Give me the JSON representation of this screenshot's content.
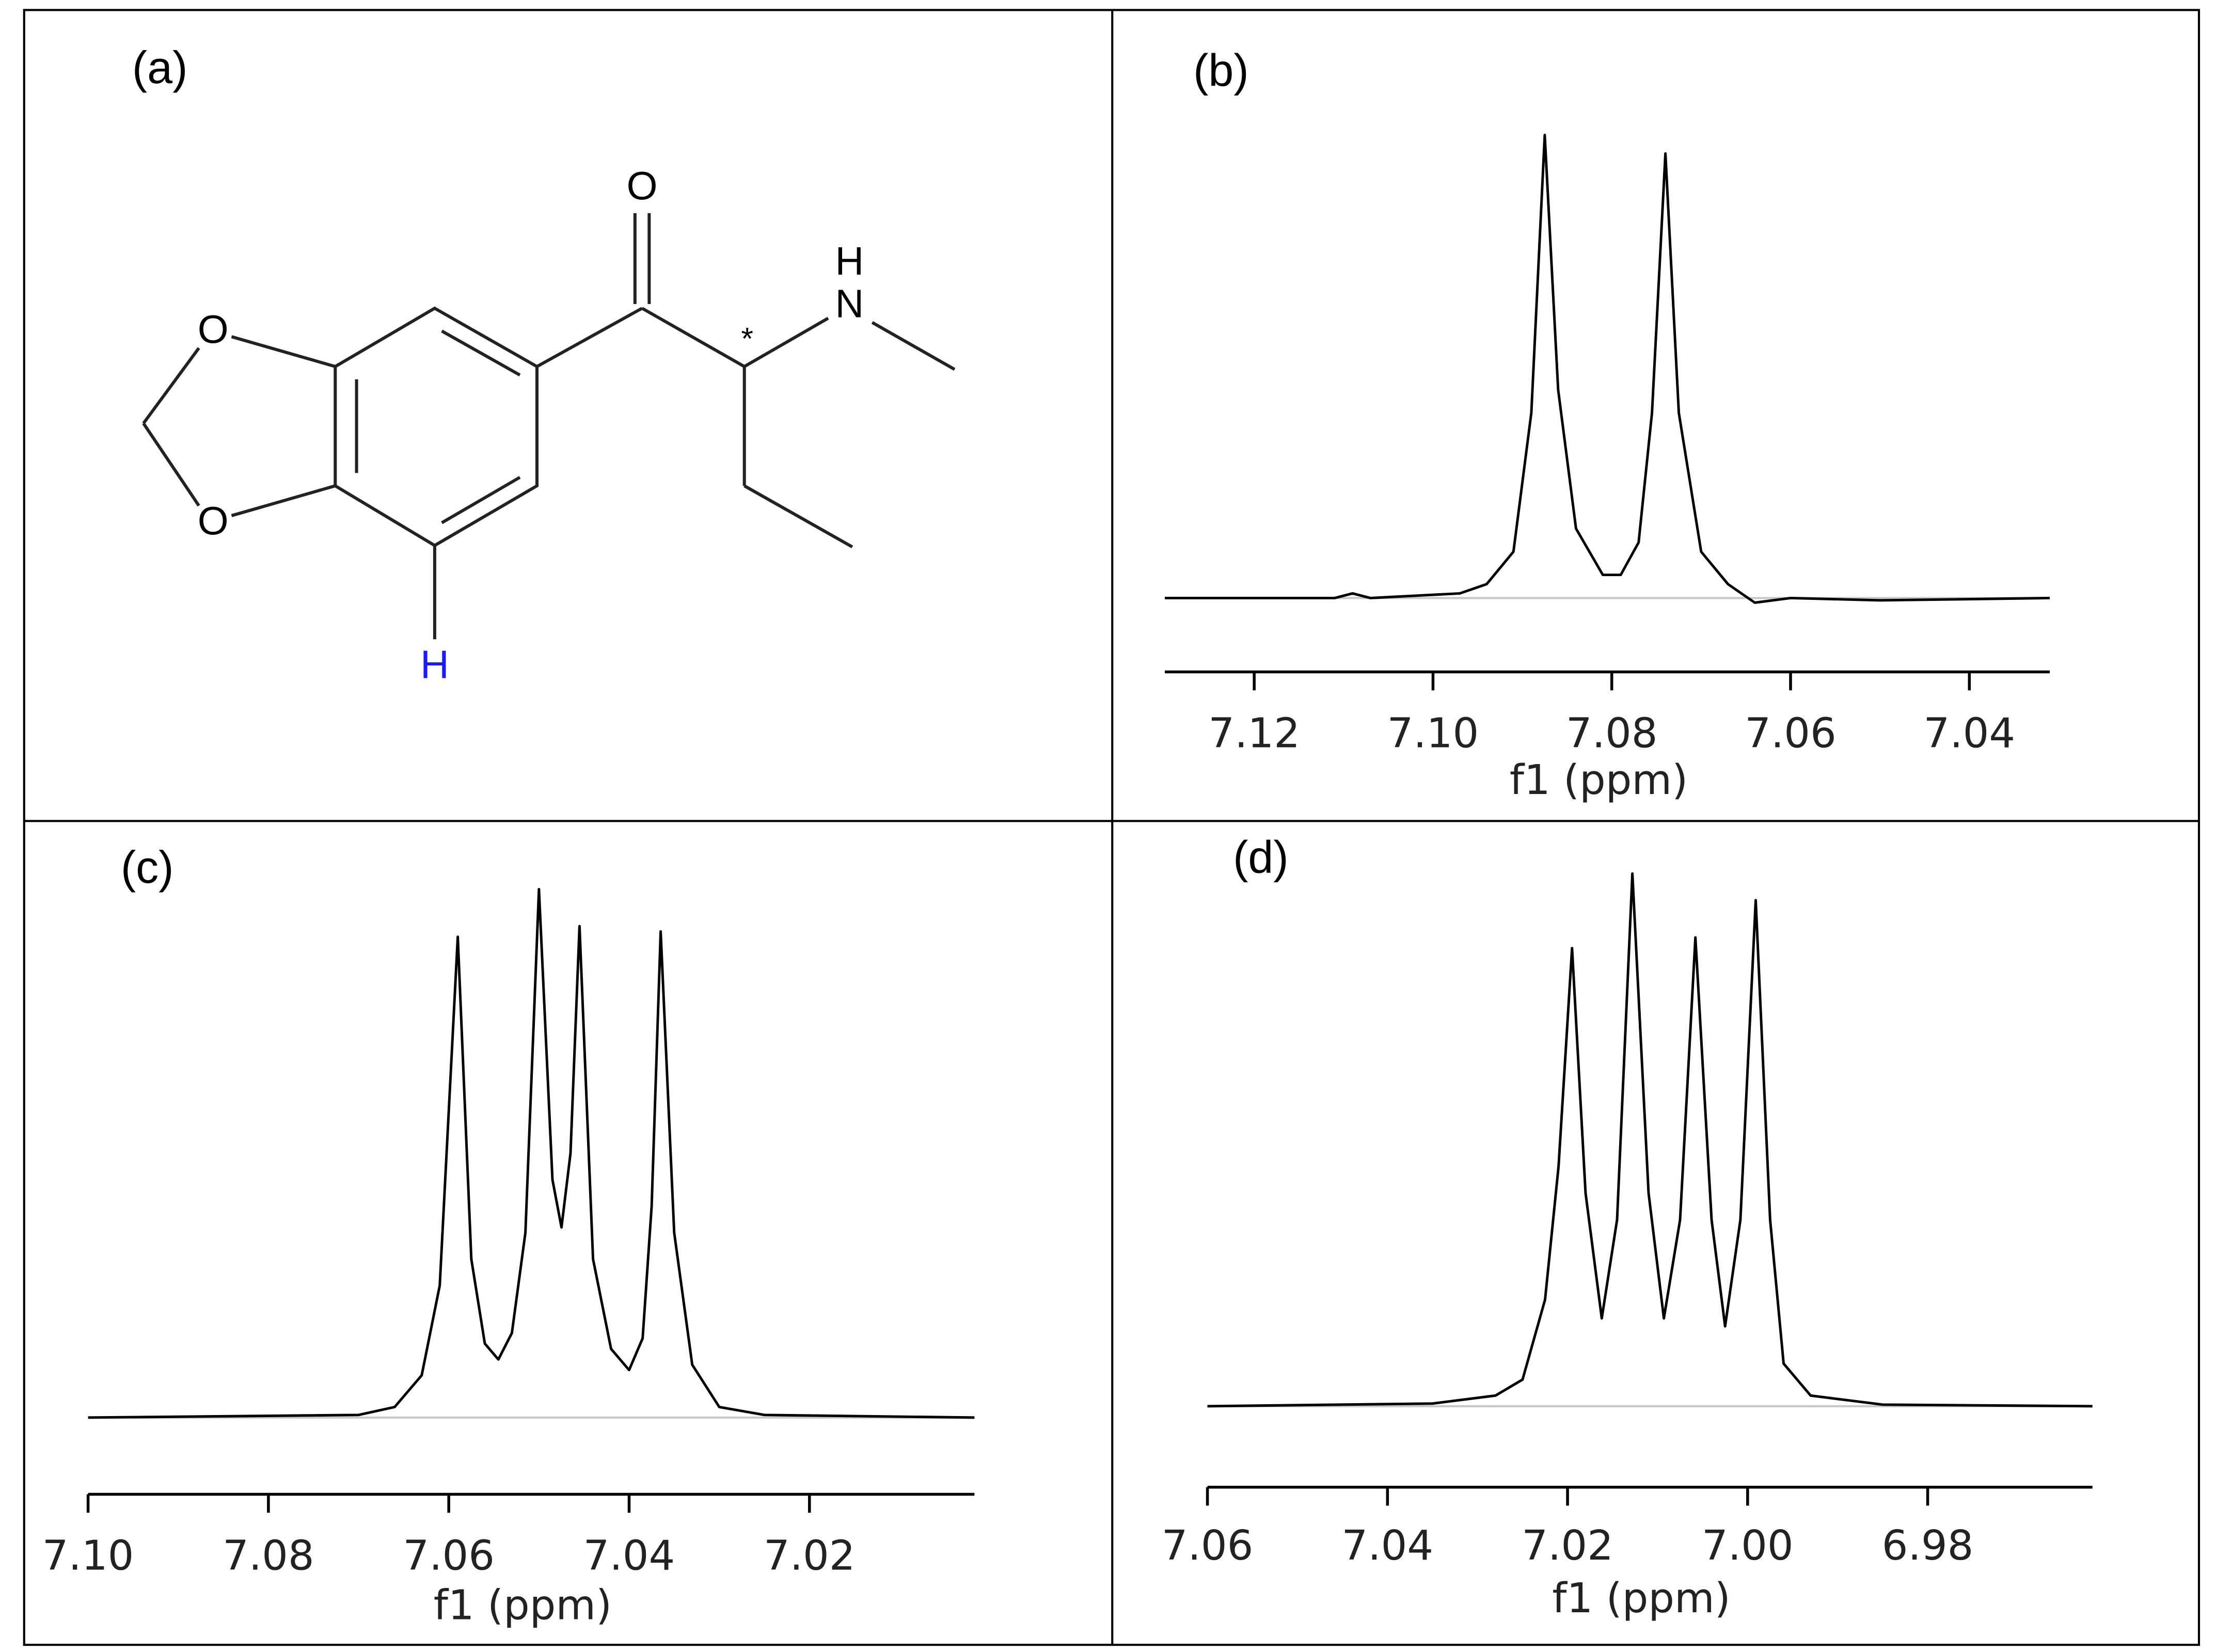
{
  "structure": {
    "label": "(a)",
    "atoms": [
      "O",
      "O",
      "O",
      "N",
      "H",
      "*",
      "H"
    ]
  },
  "chart_data": [
    {
      "type": "line",
      "label": "(b)",
      "xlabel": "f1 (ppm)",
      "color": "#000000",
      "xlim": [
        7.13,
        7.031
      ],
      "xticks": [
        7.12,
        {
          "value": 7.1,
          "label": "7.10"
        },
        7.08,
        7.06,
        7.04
      ],
      "ylim": [
        -5,
        100
      ],
      "x": [
        7.13,
        7.111,
        7.109,
        7.107,
        7.097,
        7.094,
        7.091,
        7.089,
        7.0875,
        7.086,
        7.084,
        7.081,
        7.079,
        7.077,
        7.0755,
        7.074,
        7.0725,
        7.07,
        7.067,
        7.064,
        7.06,
        7.05,
        7.031
      ],
      "values": [
        0,
        0,
        1,
        0,
        1,
        3,
        10,
        40,
        100,
        45,
        15,
        5,
        5,
        12,
        40,
        96,
        40,
        10,
        3,
        -1,
        0,
        -0.5,
        0
      ]
    },
    {
      "type": "line",
      "label": "(c)",
      "xlabel": "f1 (ppm)",
      "color": "#000000",
      "xlim": [
        7.1,
        7.0017
      ],
      "xticks": [
        {
          "value": 7.1,
          "label": "7.10"
        },
        7.08,
        7.06,
        7.04,
        7.02
      ],
      "ylim": [
        -5,
        100
      ],
      "x": [
        7.1,
        7.07,
        7.066,
        7.063,
        7.061,
        7.059,
        7.0575,
        7.056,
        7.0545,
        7.053,
        7.0515,
        7.05,
        7.0485,
        7.0475,
        7.0465,
        7.0455,
        7.044,
        7.042,
        7.04,
        7.0385,
        7.0375,
        7.0365,
        7.035,
        7.033,
        7.03,
        7.025,
        7.0017
      ],
      "values": [
        0,
        0.5,
        2,
        8,
        25,
        91,
        30,
        14,
        11,
        16,
        35,
        100,
        45,
        36,
        50,
        93,
        30,
        13,
        9,
        15,
        40,
        92,
        35,
        10,
        2,
        0.5,
        0
      ]
    },
    {
      "type": "line",
      "label": "(d)",
      "xlabel": "f1 (ppm)",
      "color": "#000000",
      "xlim": [
        7.06,
        6.9617
      ],
      "xticks": [
        7.06,
        7.04,
        7.02,
        {
          "value": 7.0,
          "label": "7.00"
        },
        6.98
      ],
      "ylim": [
        -5,
        100
      ],
      "x": [
        7.06,
        7.035,
        7.028,
        7.025,
        7.0225,
        7.021,
        7.0195,
        7.018,
        7.0162,
        7.0145,
        7.0128,
        7.011,
        7.0093,
        7.0075,
        7.0058,
        7.004,
        7.0025,
        7.0008,
        6.9991,
        6.9975,
        6.996,
        6.993,
        6.985,
        6.9617
      ],
      "values": [
        0,
        0.5,
        2,
        5,
        20,
        45,
        86,
        40,
        16.5,
        35,
        100,
        40,
        16.5,
        35,
        88,
        35,
        15,
        35,
        95,
        35,
        8,
        2,
        0.3,
        0
      ]
    }
  ]
}
